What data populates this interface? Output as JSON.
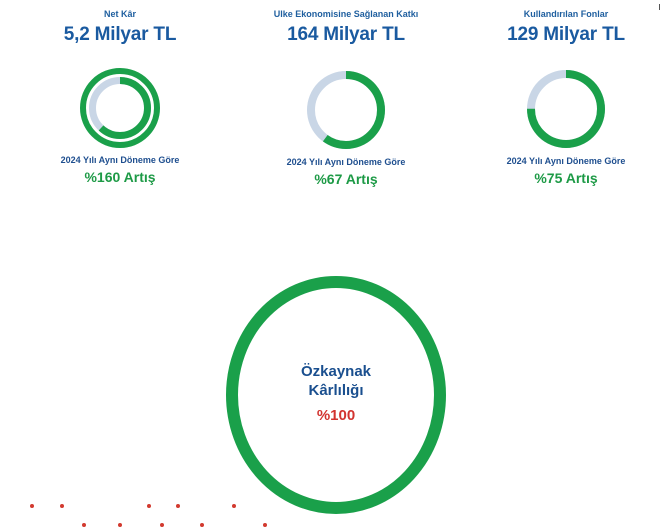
{
  "metrics": [
    {
      "title": "Net Kâr",
      "value": "5,2 Milyar TL",
      "note": "2024 Yılı Aynı Döneme Göre",
      "change": "%160 Artış"
    },
    {
      "title": "Ulke Ekonomisine Sağlanan  Katkı",
      "value": "164 Milyar TL",
      "note": "2024 Yılı Aynı Döneme Göre",
      "change": "%67 Artış"
    },
    {
      "title": "Kullandırılan  Fonlar",
      "value": "129 Milyar TL",
      "note": "2024 Yılı Aynı Döneme Göre",
      "change": "%75 Artış"
    }
  ],
  "donut_progress": [
    0.62,
    0.6,
    0.75
  ],
  "roe": {
    "label_line1": "Özkaynak",
    "label_line2": "Kârlılığı",
    "value": "%100",
    "progress": 1.0
  },
  "colors": {
    "green": "#1aa04a",
    "track": "#c9d6e6",
    "title_blue": "#1f5f9f",
    "value_blue": "#1a5aa0",
    "change_green": "#1d9a46",
    "red": "#d2332f"
  }
}
